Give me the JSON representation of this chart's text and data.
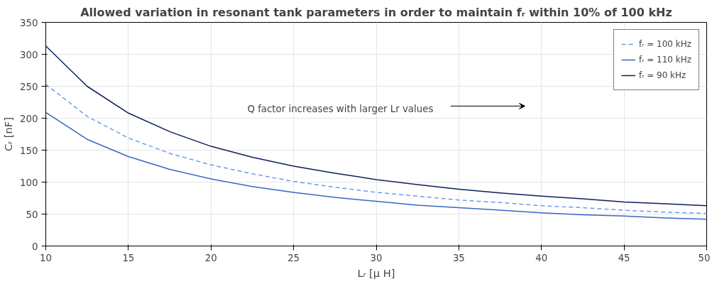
{
  "chart_data": {
    "type": "line",
    "title": "Allowed variation in resonant tank parameters in order to maintain fᵣ within 10% of 100 kHz",
    "xlabel": "Lᵣ [μ H]",
    "ylabel": "Cᵣ [nF]",
    "x": [
      10,
      12.5,
      15,
      17.5,
      20,
      22.5,
      25,
      27.5,
      30,
      32.5,
      35,
      37.5,
      40,
      42.5,
      45,
      47.5,
      50
    ],
    "series": [
      {
        "name": "fᵣ = 100 kHz",
        "color": "#6f9be8",
        "line_style": "dashed",
        "values": [
          253,
          203,
          169,
          145,
          127,
          113,
          101,
          92,
          84,
          78,
          72,
          68,
          63,
          60,
          56,
          53,
          51
        ]
      },
      {
        "name": "fᵣ = 110 kHz",
        "color": "#3a66c4",
        "line_style": "solid",
        "values": [
          209,
          167,
          140,
          120,
          105,
          93,
          84,
          76,
          70,
          64,
          60,
          56,
          52,
          49,
          47,
          44,
          42
        ]
      },
      {
        "name": "fᵣ = 90 kHz",
        "color": "#0d1f5c",
        "line_style": "solid",
        "values": [
          313,
          250,
          208,
          179,
          156,
          139,
          125,
          114,
          104,
          96,
          89,
          83,
          78,
          74,
          69,
          66,
          63
        ]
      }
    ],
    "xlim": [
      10,
      50
    ],
    "xticks": [
      10,
      15,
      20,
      25,
      30,
      35,
      40,
      45,
      50
    ],
    "ylim": [
      0,
      350
    ],
    "yticks": [
      0,
      50,
      100,
      150,
      200,
      250,
      300,
      350
    ],
    "grid": true,
    "legend": "top right",
    "marker": "none",
    "annotations": [
      "Q factor increases with larger Lr values"
    ]
  }
}
